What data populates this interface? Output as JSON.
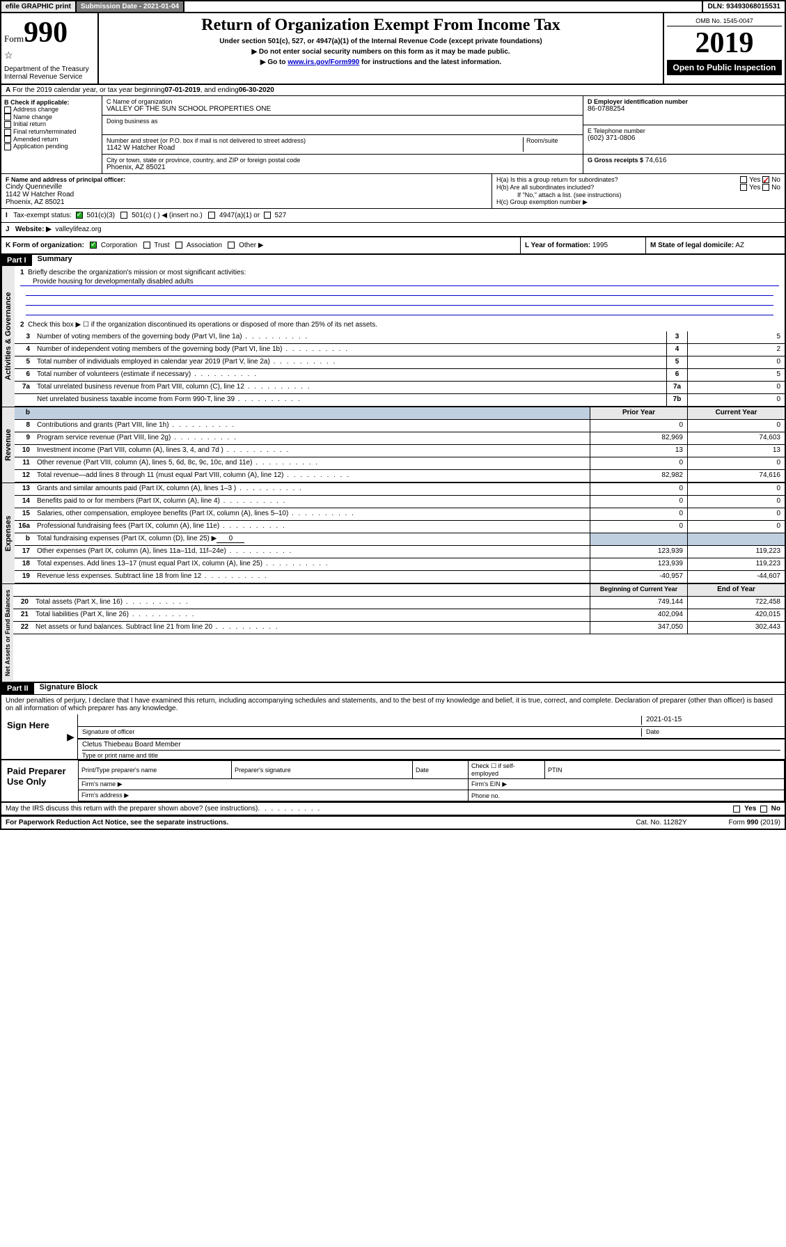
{
  "topbar": {
    "efile": "efile GRAPHIC print",
    "submission": "Submission Date - 2021-01-04",
    "dln": "DLN: 93493068015531"
  },
  "header": {
    "form_prefix": "Form",
    "form_number": "990",
    "dept": "Department of the Treasury\nInternal Revenue Service",
    "title": "Return of Organization Exempt From Income Tax",
    "sub1": "Under section 501(c), 527, or 4947(a)(1) of the Internal Revenue Code (except private foundations)",
    "sub2": "▶ Do not enter social security numbers on this form as it may be made public.",
    "sub3_pre": "▶ Go to ",
    "sub3_link": "www.irs.gov/Form990",
    "sub3_post": " for instructions and the latest information.",
    "omb": "OMB No. 1545-0047",
    "year": "2019",
    "open": "Open to Public Inspection"
  },
  "a_line": {
    "text_pre": "For the 2019 calendar year, or tax year beginning ",
    "begin": "07-01-2019",
    "mid": " , and ending ",
    "end": "06-30-2020"
  },
  "b_checks": {
    "title": "B Check if applicable:",
    "items": [
      "Address change",
      "Name change",
      "Initial return",
      "Final return/terminated",
      "Amended return",
      "Application pending"
    ]
  },
  "c": {
    "label": "C Name of organization",
    "name": "VALLEY OF THE SUN SCHOOL PROPERTIES ONE",
    "dba_label": "Doing business as",
    "street_label": "Number and street (or P.O. box if mail is not delivered to street address)",
    "room_label": "Room/suite",
    "street": "1142 W Hatcher Road",
    "city_label": "City or town, state or province, country, and ZIP or foreign postal code",
    "city": "Phoenix, AZ  85021"
  },
  "d": {
    "label": "D Employer identification number",
    "value": "86-0788254"
  },
  "e": {
    "label": "E Telephone number",
    "value": "(602) 371-0806"
  },
  "g": {
    "label": "G Gross receipts $",
    "value": "74,616"
  },
  "f": {
    "label": "F  Name and address of principal officer:",
    "name": "Cindy Quenneville",
    "addr1": "1142 W Hatcher Road",
    "addr2": "Phoenix, AZ  85021"
  },
  "h": {
    "ha": "H(a)  Is this a group return for subordinates?",
    "hb": "H(b)  Are all subordinates included?",
    "hb_note": "If \"No,\" attach a list. (see instructions)",
    "hc": "H(c)  Group exemption number ▶",
    "yes": "Yes",
    "no": "No"
  },
  "i": {
    "label": "Tax-exempt status:",
    "o1": "501(c)(3)",
    "o2": "501(c) (  ) ◀ (insert no.)",
    "o3": "4947(a)(1) or",
    "o4": "527"
  },
  "j": {
    "label": "Website: ▶",
    "value": "valleylifeaz.org"
  },
  "k": {
    "label": "K Form of organization:",
    "o1": "Corporation",
    "o2": "Trust",
    "o3": "Association",
    "o4": "Other ▶"
  },
  "l": {
    "label": "L Year of formation:",
    "value": "1995"
  },
  "m": {
    "label": "M State of legal domicile:",
    "value": "AZ"
  },
  "part1": {
    "header": "Part I",
    "title": "Summary"
  },
  "summary": {
    "q1": "Briefly describe the organization's mission or most significant activities:",
    "mission": "Provide housing for developmentally disabled adults",
    "q2": "Check this box ▶ ☐  if the organization discontinued its operations or disposed of more than 25% of its net assets.",
    "lines_ag": [
      {
        "n": "3",
        "d": "Number of voting members of the governing body (Part VI, line 1a)",
        "box": "3",
        "v": "5"
      },
      {
        "n": "4",
        "d": "Number of independent voting members of the governing body (Part VI, line 1b)",
        "box": "4",
        "v": "2"
      },
      {
        "n": "5",
        "d": "Total number of individuals employed in calendar year 2019 (Part V, line 2a)",
        "box": "5",
        "v": "0"
      },
      {
        "n": "6",
        "d": "Total number of volunteers (estimate if necessary)",
        "box": "6",
        "v": "5"
      },
      {
        "n": "7a",
        "d": "Total unrelated business revenue from Part VIII, column (C), line 12",
        "box": "7a",
        "v": "0"
      },
      {
        "n": "",
        "d": "Net unrelated business taxable income from Form 990-T, line 39",
        "box": "7b",
        "v": "0"
      }
    ],
    "col_hdr_prior": "Prior Year",
    "col_hdr_current": "Current Year",
    "revenue": [
      {
        "n": "8",
        "d": "Contributions and grants (Part VIII, line 1h)",
        "p": "0",
        "c": "0"
      },
      {
        "n": "9",
        "d": "Program service revenue (Part VIII, line 2g)",
        "p": "82,969",
        "c": "74,603"
      },
      {
        "n": "10",
        "d": "Investment income (Part VIII, column (A), lines 3, 4, and 7d )",
        "p": "13",
        "c": "13"
      },
      {
        "n": "11",
        "d": "Other revenue (Part VIII, column (A), lines 5, 6d, 8c, 9c, 10c, and 11e)",
        "p": "0",
        "c": "0"
      },
      {
        "n": "12",
        "d": "Total revenue—add lines 8 through 11 (must equal Part VIII, column (A), line 12)",
        "p": "82,982",
        "c": "74,616"
      }
    ],
    "expenses": [
      {
        "n": "13",
        "d": "Grants and similar amounts paid (Part IX, column (A), lines 1–3 )",
        "p": "0",
        "c": "0"
      },
      {
        "n": "14",
        "d": "Benefits paid to or for members (Part IX, column (A), line 4)",
        "p": "0",
        "c": "0"
      },
      {
        "n": "15",
        "d": "Salaries, other compensation, employee benefits (Part IX, column (A), lines 5–10)",
        "p": "0",
        "c": "0"
      },
      {
        "n": "16a",
        "d": "Professional fundraising fees (Part IX, column (A), line 11e)",
        "p": "0",
        "c": "0"
      }
    ],
    "exp_b": {
      "n": "b",
      "d": "Total fundraising expenses (Part IX, column (D), line 25) ▶",
      "v": "0"
    },
    "expenses2": [
      {
        "n": "17",
        "d": "Other expenses (Part IX, column (A), lines 11a–11d, 11f–24e)",
        "p": "123,939",
        "c": "119,223"
      },
      {
        "n": "18",
        "d": "Total expenses. Add lines 13–17 (must equal Part IX, column (A), line 25)",
        "p": "123,939",
        "c": "119,223"
      },
      {
        "n": "19",
        "d": "Revenue less expenses. Subtract line 18 from line 12",
        "p": "-40,957",
        "c": "-44,607"
      }
    ],
    "col_hdr_begin": "Beginning of Current Year",
    "col_hdr_end": "End of Year",
    "netassets": [
      {
        "n": "20",
        "d": "Total assets (Part X, line 16)",
        "p": "749,144",
        "c": "722,458"
      },
      {
        "n": "21",
        "d": "Total liabilities (Part X, line 26)",
        "p": "402,094",
        "c": "420,015"
      },
      {
        "n": "22",
        "d": "Net assets or fund balances. Subtract line 21 from line 20",
        "p": "347,050",
        "c": "302,443"
      }
    ]
  },
  "vtabs": {
    "ag": "Activities & Governance",
    "rev": "Revenue",
    "exp": "Expenses",
    "na": "Net Assets or Fund Balances"
  },
  "part2": {
    "header": "Part II",
    "title": "Signature Block"
  },
  "perjury": "Under penalties of perjury, I declare that I have examined this return, including accompanying schedules and statements, and to the best of my knowledge and belief, it is true, correct, and complete. Declaration of preparer (other than officer) is based on all information of which preparer has any knowledge.",
  "sign": {
    "here": "Sign Here",
    "sig_officer": "Signature of officer",
    "date_label": "Date",
    "date": "2021-01-15",
    "name": "Cletus Thiebeau  Board Member",
    "name_label": "Type or print name and title"
  },
  "paid": {
    "title": "Paid Preparer Use Only",
    "c1": "Print/Type preparer's name",
    "c2": "Preparer's signature",
    "c3": "Date",
    "c4_pre": "Check ☐ if self-employed",
    "c5": "PTIN",
    "firm_name": "Firm's name    ▶",
    "firm_ein": "Firm's EIN ▶",
    "firm_addr": "Firm's address ▶",
    "phone": "Phone no."
  },
  "discuss": {
    "q": "May the IRS discuss this return with the preparer shown above? (see instructions)",
    "yes": "Yes",
    "no": "No"
  },
  "footer": {
    "left": "For Paperwork Reduction Act Notice, see the separate instructions.",
    "mid": "Cat. No. 11282Y",
    "right": "Form 990 (2019)"
  }
}
